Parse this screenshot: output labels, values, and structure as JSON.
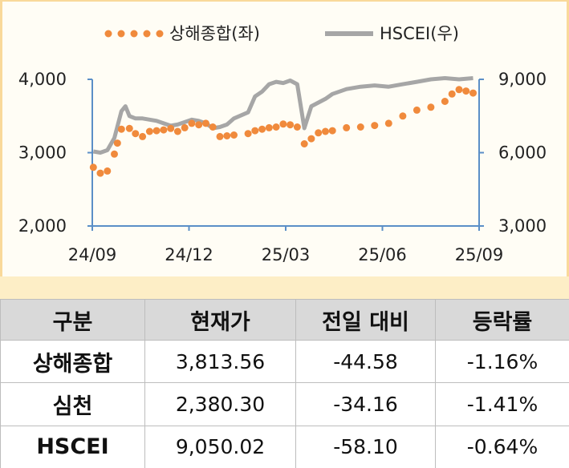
{
  "chart_data": {
    "type": "line",
    "legend_position": "top",
    "grid": false,
    "x_ticks": [
      "24/09",
      "24/12",
      "25/03",
      "25/06",
      "25/09"
    ],
    "left_axis": {
      "ticks": [
        "2,000",
        "3,000",
        "4,000"
      ],
      "range": [
        2000,
        4000
      ]
    },
    "right_axis": {
      "ticks": [
        "3,000",
        "6,000",
        "9,000"
      ],
      "range": [
        3000,
        9000
      ]
    },
    "series": [
      {
        "name": "상해종합(좌)",
        "axis": "left",
        "style": "dotted",
        "color": "#f08a3c",
        "x": [
          "2024-09-02",
          "2024-09-09",
          "2024-09-16",
          "2024-09-23",
          "2024-09-26",
          "2024-09-30",
          "2024-10-08",
          "2024-10-14",
          "2024-10-21",
          "2024-10-28",
          "2024-11-04",
          "2024-11-11",
          "2024-11-18",
          "2024-11-25",
          "2024-12-02",
          "2024-12-09",
          "2024-12-16",
          "2024-12-23",
          "2024-12-30",
          "2025-01-06",
          "2025-01-13",
          "2025-01-20",
          "2025-02-03",
          "2025-02-10",
          "2025-02-17",
          "2025-02-24",
          "2025-03-03",
          "2025-03-10",
          "2025-03-17",
          "2025-03-24",
          "2025-03-31",
          "2025-04-07",
          "2025-04-14",
          "2025-04-21",
          "2025-04-28",
          "2025-05-12",
          "2025-05-26",
          "2025-06-09",
          "2025-06-23",
          "2025-07-07",
          "2025-07-21",
          "2025-08-04",
          "2025-08-18",
          "2025-08-25",
          "2025-09-01",
          "2025-09-08",
          "2025-09-15"
        ],
        "values": [
          2800,
          2720,
          2750,
          2980,
          3130,
          3320,
          3330,
          3260,
          3220,
          3290,
          3300,
          3310,
          3330,
          3290,
          3340,
          3400,
          3380,
          3400,
          3350,
          3220,
          3230,
          3240,
          3260,
          3300,
          3320,
          3340,
          3350,
          3390,
          3380,
          3350,
          3120,
          3190,
          3270,
          3290,
          3300,
          3340,
          3350,
          3370,
          3400,
          3500,
          3580,
          3620,
          3700,
          3800,
          3860,
          3840,
          3813.56
        ]
      },
      {
        "name": "HSCEI(우)",
        "axis": "right",
        "style": "solid",
        "color": "#a6a6a6",
        "x": [
          "2024-09-02",
          "2024-09-09",
          "2024-09-16",
          "2024-09-23",
          "2024-09-30",
          "2024-10-04",
          "2024-10-08",
          "2024-10-14",
          "2024-10-21",
          "2024-10-28",
          "2024-11-04",
          "2024-11-11",
          "2024-11-18",
          "2024-11-25",
          "2024-12-02",
          "2024-12-09",
          "2024-12-16",
          "2024-12-23",
          "2024-12-30",
          "2025-01-06",
          "2025-01-13",
          "2025-01-20",
          "2025-02-03",
          "2025-02-10",
          "2025-02-17",
          "2025-02-24",
          "2025-03-03",
          "2025-03-10",
          "2025-03-17",
          "2025-03-24",
          "2025-03-31",
          "2025-04-07",
          "2025-04-14",
          "2025-04-21",
          "2025-04-28",
          "2025-05-12",
          "2025-05-26",
          "2025-06-09",
          "2025-06-23",
          "2025-07-07",
          "2025-07-21",
          "2025-08-04",
          "2025-08-18",
          "2025-09-01",
          "2025-09-15"
        ],
        "values": [
          6050,
          6000,
          6100,
          6600,
          7700,
          7900,
          7500,
          7400,
          7400,
          7350,
          7300,
          7200,
          7100,
          7150,
          7250,
          7350,
          7300,
          7200,
          7000,
          7050,
          7150,
          7400,
          7650,
          8300,
          8500,
          8800,
          8900,
          8850,
          8950,
          8800,
          7000,
          7900,
          8050,
          8200,
          8400,
          8600,
          8700,
          8750,
          8700,
          8800,
          8900,
          9000,
          9050,
          9000,
          9050.02
        ]
      }
    ]
  },
  "table": {
    "headers": [
      "구분",
      "현재가",
      "전일 대비",
      "등락률"
    ],
    "rows": [
      [
        "상해종합",
        "3,813.56",
        "-44.58",
        "-1.16%"
      ],
      [
        "심천",
        "2,380.30",
        "-34.16",
        "-1.41%"
      ],
      [
        "HSCEI",
        "9,050.02",
        "-58.10",
        "-0.64%"
      ]
    ]
  }
}
